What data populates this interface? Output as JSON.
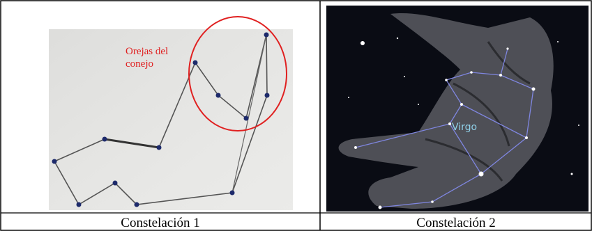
{
  "figure": {
    "cells": [
      {
        "annotation": [
          "Orejas del",
          "conejo"
        ],
        "caption": "Constelación 1"
      },
      {
        "label": "Virgo",
        "caption": "Constelación 2"
      }
    ]
  }
}
